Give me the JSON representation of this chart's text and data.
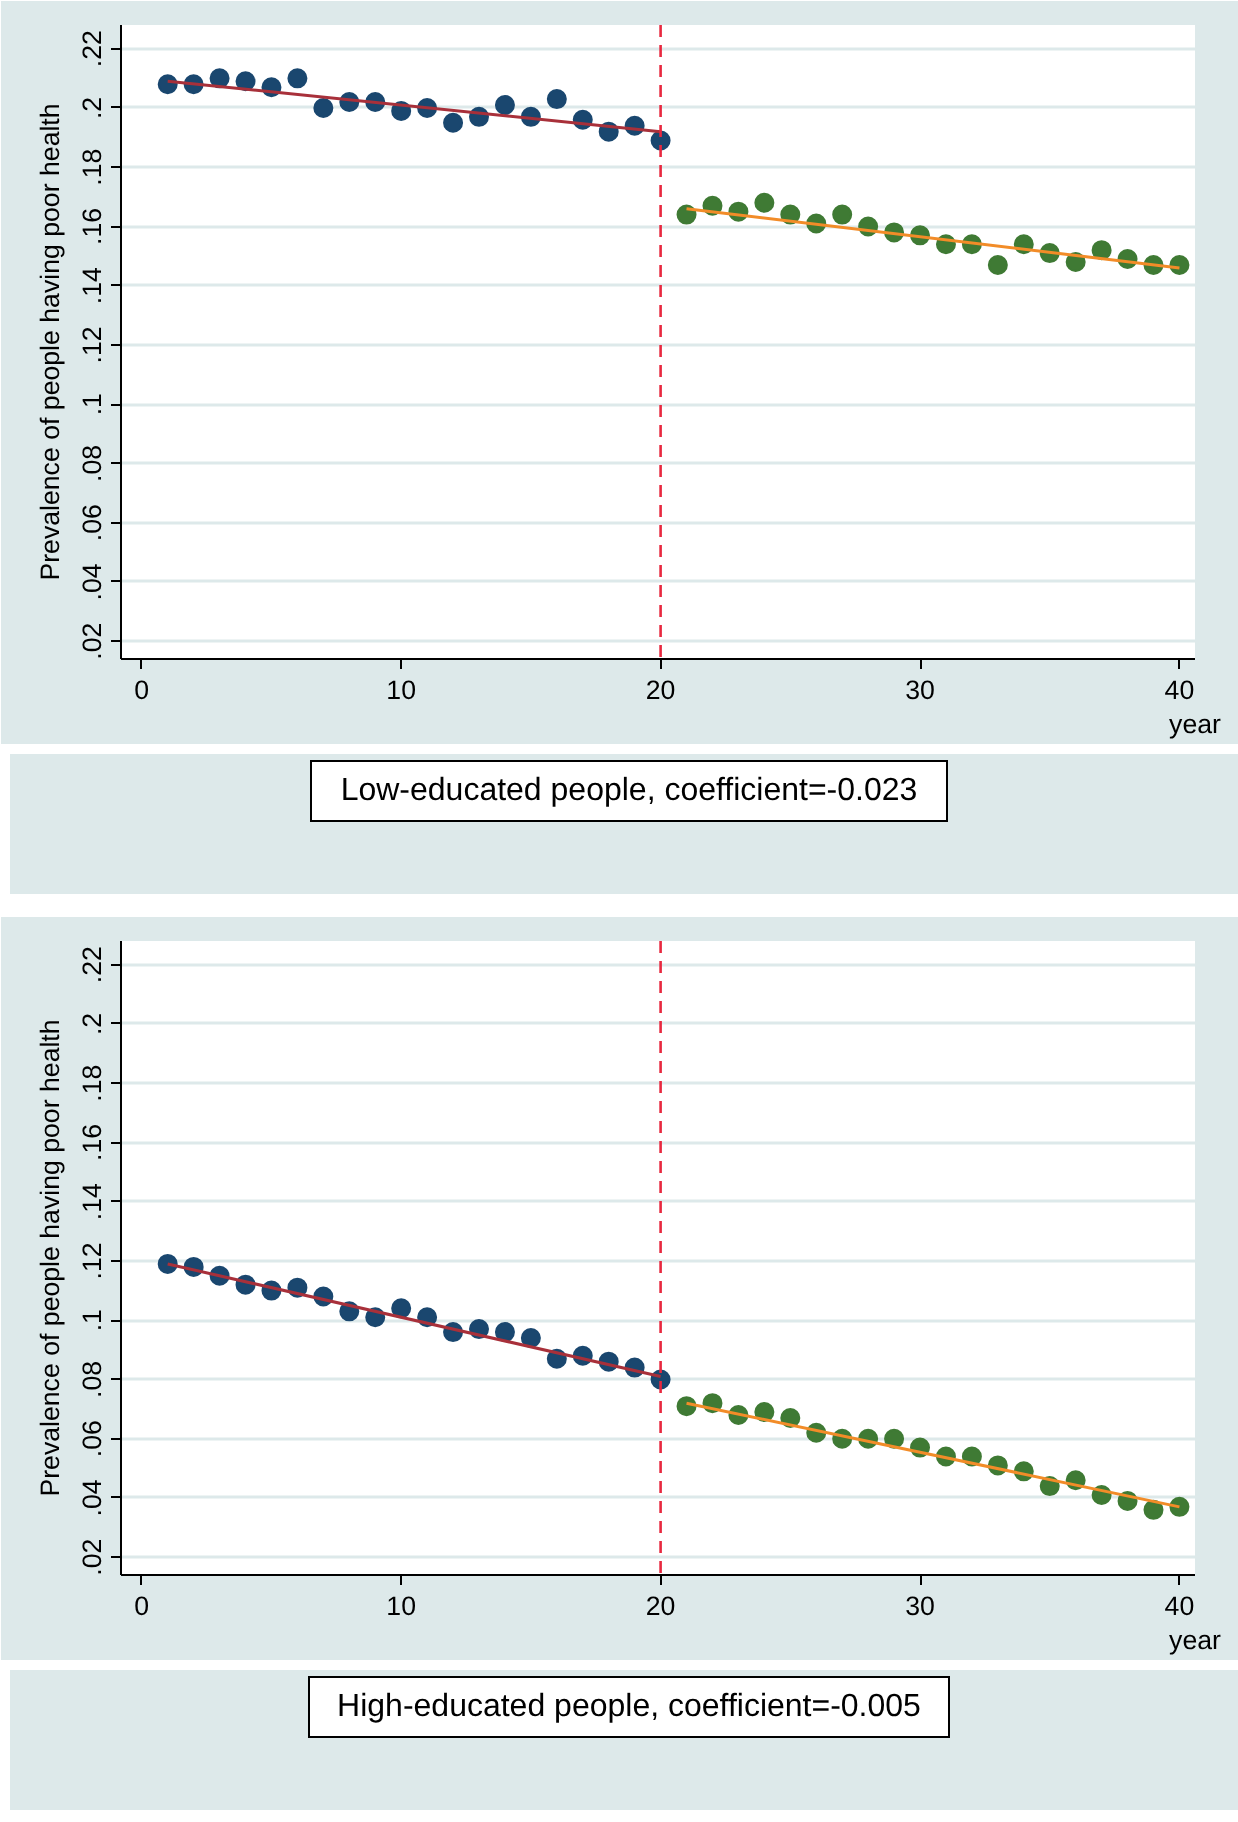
{
  "chart_data": [
    {
      "type": "scatter",
      "ylabel": "Prevalence of people having poor health",
      "xlabel": "year",
      "annotations": [
        "Low-educated people, coefficient=-0.023"
      ],
      "xlim": [
        -0.8,
        40.6
      ],
      "ylim": [
        0.014,
        0.228
      ],
      "xticks": [
        0,
        10,
        20,
        30,
        40
      ],
      "yticks": [
        {
          "value": 0.02,
          "label": ".02"
        },
        {
          "value": 0.04,
          "label": ".04"
        },
        {
          "value": 0.06,
          "label": ".06"
        },
        {
          "value": 0.08,
          "label": ".08"
        },
        {
          "value": 0.1,
          "label": ".1"
        },
        {
          "value": 0.12,
          "label": ".12"
        },
        {
          "value": 0.14,
          "label": ".14"
        },
        {
          "value": 0.16,
          "label": ".16"
        },
        {
          "value": 0.18,
          "label": ".18"
        },
        {
          "value": 0.2,
          "label": ".2"
        },
        {
          "value": 0.22,
          "label": ".22"
        }
      ],
      "grid": "y",
      "ref_lines": [
        {
          "axis": "x",
          "value": 20,
          "color": "#e8283f",
          "line_style": "dashed"
        }
      ],
      "series": [
        {
          "type": "scatter",
          "marker": "circle",
          "color": "#1a476f",
          "x": [
            1,
            2,
            3,
            4,
            5,
            6,
            7,
            8,
            9,
            10,
            11,
            12,
            13,
            14,
            15,
            16,
            17,
            18,
            19,
            20
          ],
          "values": [
            0.208,
            0.208,
            0.21,
            0.209,
            0.207,
            0.21,
            0.2,
            0.202,
            0.202,
            0.199,
            0.2,
            0.195,
            0.197,
            0.201,
            0.197,
            0.203,
            0.196,
            0.192,
            0.194,
            0.189
          ]
        },
        {
          "type": "scatter",
          "marker": "circle",
          "color": "#3f7a34",
          "x": [
            21,
            22,
            23,
            24,
            25,
            26,
            27,
            28,
            29,
            30,
            31,
            32,
            33,
            34,
            35,
            36,
            37,
            38,
            39,
            40
          ],
          "values": [
            0.164,
            0.167,
            0.165,
            0.168,
            0.164,
            0.161,
            0.164,
            0.16,
            0.158,
            0.157,
            0.154,
            0.154,
            0.147,
            0.154,
            0.151,
            0.148,
            0.152,
            0.149,
            0.147,
            0.147
          ]
        },
        {
          "type": "line",
          "color": "#a8303a",
          "x": [
            1,
            20
          ],
          "values": [
            0.209,
            0.192
          ]
        },
        {
          "type": "line",
          "color": "#f28c28",
          "x": [
            21,
            40
          ],
          "values": [
            0.166,
            0.146
          ]
        }
      ]
    },
    {
      "type": "scatter",
      "ylabel": "Prevalence of people having poor health",
      "xlabel": "year",
      "annotations": [
        "High-educated people, coefficient=-0.005"
      ],
      "xlim": [
        -0.8,
        40.6
      ],
      "ylim": [
        0.014,
        0.228
      ],
      "xticks": [
        0,
        10,
        20,
        30,
        40
      ],
      "yticks": [
        {
          "value": 0.02,
          "label": ".02"
        },
        {
          "value": 0.04,
          "label": ".04"
        },
        {
          "value": 0.06,
          "label": ".06"
        },
        {
          "value": 0.08,
          "label": ".08"
        },
        {
          "value": 0.1,
          "label": ".1"
        },
        {
          "value": 0.12,
          "label": ".12"
        },
        {
          "value": 0.14,
          "label": ".14"
        },
        {
          "value": 0.16,
          "label": ".16"
        },
        {
          "value": 0.18,
          "label": ".18"
        },
        {
          "value": 0.2,
          "label": ".2"
        },
        {
          "value": 0.22,
          "label": ".22"
        }
      ],
      "grid": "y",
      "ref_lines": [
        {
          "axis": "x",
          "value": 20,
          "color": "#e8283f",
          "line_style": "dashed"
        }
      ],
      "series": [
        {
          "type": "scatter",
          "marker": "circle",
          "color": "#1a476f",
          "x": [
            1,
            2,
            3,
            4,
            5,
            6,
            7,
            8,
            9,
            10,
            11,
            12,
            13,
            14,
            15,
            16,
            17,
            18,
            19,
            20
          ],
          "values": [
            0.119,
            0.118,
            0.115,
            0.112,
            0.11,
            0.111,
            0.108,
            0.103,
            0.101,
            0.104,
            0.101,
            0.096,
            0.097,
            0.096,
            0.094,
            0.087,
            0.088,
            0.086,
            0.084,
            0.08
          ]
        },
        {
          "type": "scatter",
          "marker": "circle",
          "color": "#3f7a34",
          "x": [
            21,
            22,
            23,
            24,
            25,
            26,
            27,
            28,
            29,
            30,
            31,
            32,
            33,
            34,
            35,
            36,
            37,
            38,
            39,
            40
          ],
          "values": [
            0.071,
            0.072,
            0.068,
            0.069,
            0.067,
            0.062,
            0.06,
            0.06,
            0.06,
            0.057,
            0.054,
            0.054,
            0.051,
            0.049,
            0.044,
            0.046,
            0.041,
            0.039,
            0.036,
            0.037
          ]
        },
        {
          "type": "line",
          "color": "#a8303a",
          "x": [
            1,
            20
          ],
          "values": [
            0.119,
            0.081
          ]
        },
        {
          "type": "line",
          "color": "#f28c28",
          "x": [
            21,
            40
          ],
          "values": [
            0.072,
            0.037
          ]
        }
      ]
    }
  ]
}
